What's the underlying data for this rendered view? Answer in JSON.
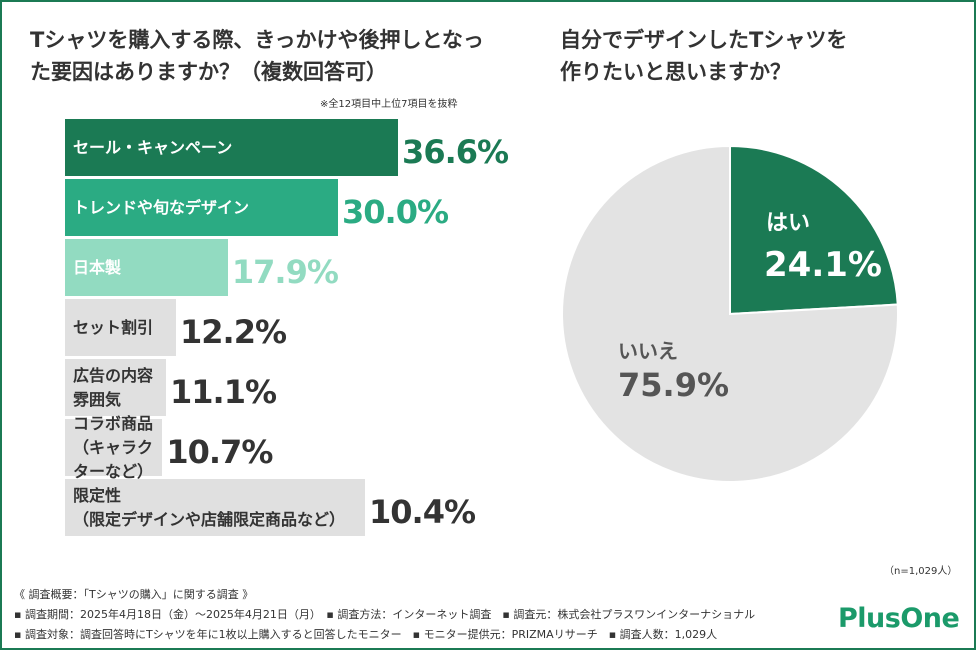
{
  "colors": {
    "frame": "#1b7a54",
    "pie_yes": "#1b7a54",
    "pie_no": "#e3e3e3",
    "text": "#333333",
    "logo": "#1b9a6a"
  },
  "chart_data": [
    {
      "type": "bar",
      "orientation": "horizontal",
      "title": "Tシャツを購入する際、きっかけや後押しとなった要因はありますか？（複数回答可）",
      "title_lines": [
        "Tシャツを購入する際、きっかけや後押しとなっ",
        "た要因はありますか？（複数回答可）"
      ],
      "note": "※全12項目中上位7項目を抜粋",
      "unit": "%",
      "xlim": [
        0,
        100
      ],
      "categories": [
        "セール・キャンペーン",
        "トレンドや旬なデザイン",
        "日本製",
        "セット割引",
        "広告の内容\n雰囲気",
        "コラボ商品\n（キャラクターなど）",
        "限定性\n（限定デザインや店舗限定商品など）"
      ],
      "values": [
        36.6,
        30.0,
        17.9,
        12.2,
        11.1,
        10.7,
        10.4
      ],
      "value_labels": [
        "36.6%",
        "30.0%",
        "17.9%",
        "12.2%",
        "11.1%",
        "10.7%",
        "10.4%"
      ]
    },
    {
      "type": "pie",
      "title": "自分でデザインしたTシャツを作りたいと思いますか？",
      "title_lines": [
        "自分でデザインしたTシャツを",
        "作りたいと思いますか？"
      ],
      "slices": [
        {
          "label": "はい",
          "value": 24.1,
          "value_label": "24.1%"
        },
        {
          "label": "いいえ",
          "value": 75.9,
          "value_label": "75.9%"
        }
      ]
    }
  ],
  "sample_note": "（n=1,029人）",
  "footer": {
    "lines": [
      "《 調査概要：「Tシャツの購入」に関する調査 》",
      "▪ 調査期間：2025年4月18日（金）～2025年4月21日（月）　▪ 調査方法：インターネット調査　▪ 調査元：株式会社プラスワンインターナショナル",
      "▪ 調査対象：調査回答時にTシャツを年に1枚以上購入すると回答したモニター　▪ モニター提供元：PRIZMAリサーチ　▪ 調査人数：1,029人"
    ]
  },
  "logo": {
    "text": "PlusOne"
  }
}
